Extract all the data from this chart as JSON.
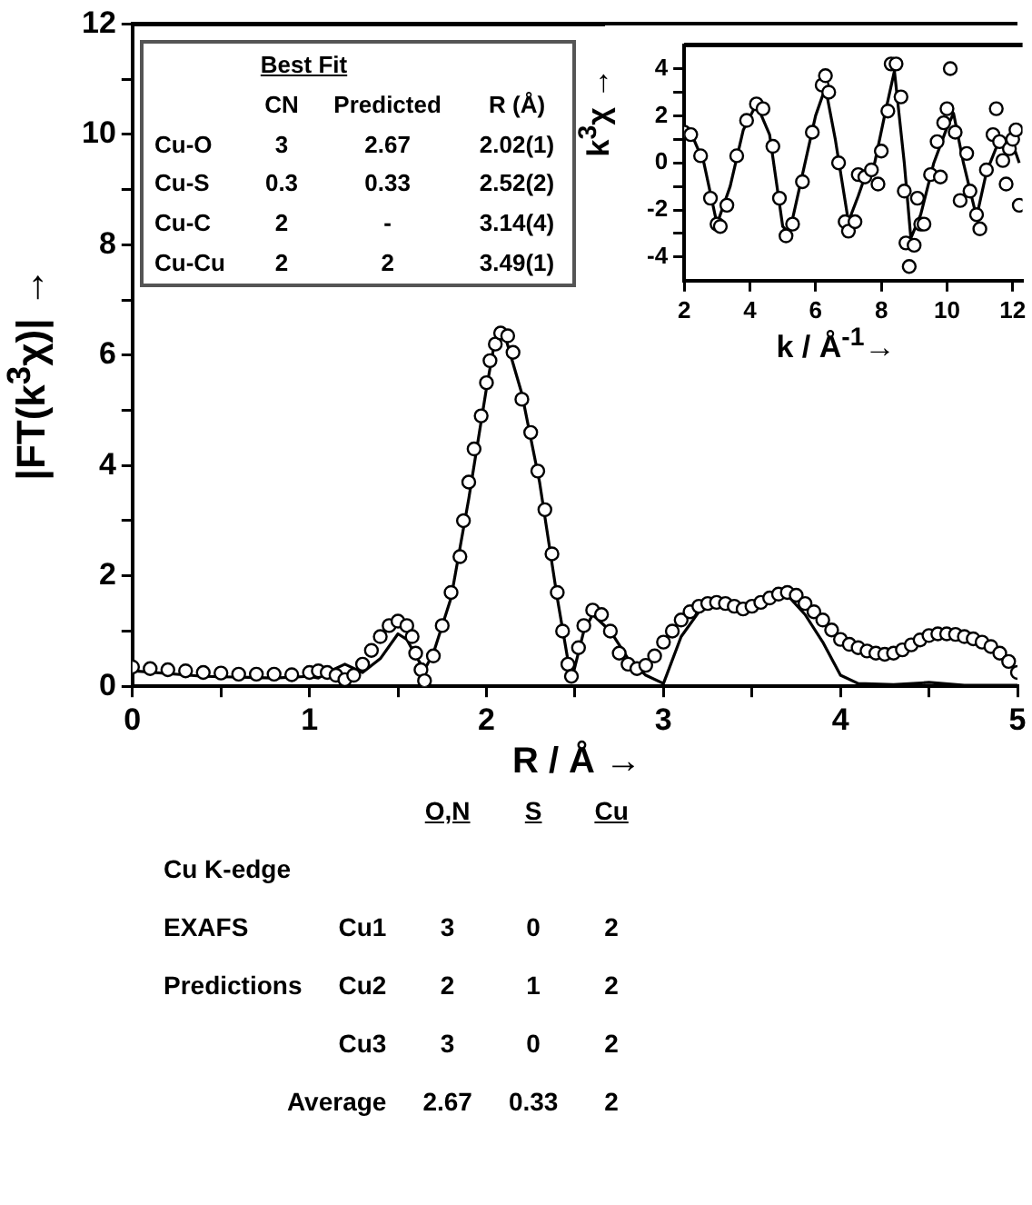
{
  "chart_data": [
    {
      "type": "line",
      "xlabel": "R / Å →",
      "ylabel": "|FT(k$^{3}$χ)| →",
      "xlim": [
        0,
        5
      ],
      "ylim": [
        0,
        12
      ],
      "xticks": [
        0,
        {
          "value": 0.5,
          "label": null
        },
        1,
        {
          "value": 1.5,
          "label": null
        },
        2,
        {
          "value": 2.5,
          "label": null
        },
        3,
        {
          "value": 3.5,
          "label": null
        },
        4,
        {
          "value": 4.5,
          "label": null
        },
        5
      ],
      "yticks": [
        0,
        {
          "value": 1,
          "label": null
        },
        2,
        {
          "value": 3,
          "label": null
        },
        4,
        {
          "value": 5,
          "label": null
        },
        6,
        {
          "value": 7,
          "label": null
        },
        8,
        {
          "value": 9,
          "label": null
        },
        10,
        {
          "value": 11,
          "label": null
        },
        12
      ],
      "series": [
        {
          "type": "scatter",
          "marker": "circle",
          "color": "#000000",
          "x": [
            0,
            0.1,
            0.2,
            0.3,
            0.4,
            0.5,
            0.6,
            0.7,
            0.8,
            0.9,
            1.0,
            1.05,
            1.1,
            1.15,
            1.2,
            1.25,
            1.3,
            1.35,
            1.4,
            1.45,
            1.5,
            1.55,
            1.58,
            1.6,
            1.63,
            1.65,
            1.7,
            1.75,
            1.8,
            1.85,
            1.87,
            1.9,
            1.93,
            1.97,
            2.0,
            2.02,
            2.05,
            2.08,
            2.12,
            2.15,
            2.2,
            2.25,
            2.29,
            2.33,
            2.37,
            2.4,
            2.43,
            2.46,
            2.48,
            2.52,
            2.55,
            2.6,
            2.65,
            2.7,
            2.75,
            2.8,
            2.85,
            2.9,
            2.95,
            3.0,
            3.05,
            3.1,
            3.15,
            3.2,
            3.25,
            3.3,
            3.35,
            3.4,
            3.45,
            3.5,
            3.55,
            3.6,
            3.65,
            3.7,
            3.75,
            3.8,
            3.85,
            3.9,
            3.95,
            4.0,
            4.05,
            4.1,
            4.15,
            4.2,
            4.25,
            4.3,
            4.35,
            4.4,
            4.45,
            4.5,
            4.55,
            4.6,
            4.65,
            4.7,
            4.75,
            4.8,
            4.85,
            4.9,
            4.95,
            5.0
          ],
          "values": [
            0.35,
            0.32,
            0.3,
            0.28,
            0.25,
            0.24,
            0.22,
            0.22,
            0.22,
            0.21,
            0.25,
            0.28,
            0.25,
            0.2,
            0.12,
            0.2,
            0.4,
            0.65,
            0.9,
            1.1,
            1.18,
            1.1,
            0.9,
            0.6,
            0.3,
            0.1,
            0.55,
            1.1,
            1.7,
            2.35,
            3.0,
            3.7,
            4.3,
            4.9,
            5.5,
            5.9,
            6.2,
            6.4,
            6.35,
            6.05,
            5.2,
            4.6,
            3.9,
            3.2,
            2.4,
            1.7,
            1.0,
            0.4,
            0.18,
            0.7,
            1.1,
            1.38,
            1.3,
            1.0,
            0.6,
            0.4,
            0.32,
            0.38,
            0.55,
            0.8,
            1.0,
            1.2,
            1.35,
            1.45,
            1.5,
            1.52,
            1.5,
            1.45,
            1.4,
            1.45,
            1.52,
            1.6,
            1.67,
            1.7,
            1.65,
            1.5,
            1.35,
            1.2,
            1.02,
            0.85,
            0.76,
            0.7,
            0.64,
            0.6,
            0.58,
            0.6,
            0.66,
            0.75,
            0.84,
            0.92,
            0.95,
            0.95,
            0.94,
            0.9,
            0.86,
            0.8,
            0.72,
            0.6,
            0.45,
            0.25
          ]
        },
        {
          "type": "line",
          "marker": "none",
          "color": "#000000",
          "x": [
            0,
            0.4,
            0.8,
            1.0,
            1.05,
            1.1,
            1.2,
            1.3,
            1.4,
            1.5,
            1.55,
            1.6,
            1.65,
            1.7,
            1.8,
            1.9,
            2.0,
            2.05,
            2.1,
            2.2,
            2.3,
            2.4,
            2.48,
            2.55,
            2.6,
            2.7,
            2.8,
            2.9,
            3.0,
            3.1,
            3.2,
            3.3,
            3.45,
            3.6,
            3.7,
            3.8,
            3.9,
            4.0,
            4.1,
            4.3,
            4.5,
            4.7,
            5.0
          ],
          "values": [
            0.28,
            0.18,
            0.15,
            0.18,
            0.15,
            0.25,
            0.4,
            0.25,
            0.5,
            0.95,
            0.85,
            0.55,
            0.3,
            0.6,
            1.6,
            3.4,
            5.4,
            6.3,
            6.4,
            5.3,
            3.7,
            1.6,
            0.1,
            1.0,
            1.3,
            1.0,
            0.5,
            0.2,
            0.05,
            0.9,
            1.35,
            1.5,
            1.38,
            1.55,
            1.65,
            1.3,
            0.8,
            0.2,
            0.05,
            0.03,
            0.07,
            0.02,
            0.02
          ]
        }
      ]
    },
    {
      "type": "line",
      "xlabel": "k / Å$^{-1}$→",
      "ylabel": "k$^{3}$χ →",
      "xlim": [
        2,
        12.3
      ],
      "ylim": [
        -5,
        5
      ],
      "xticks": [
        2,
        4,
        6,
        8,
        10,
        12
      ],
      "yticks": [
        -4,
        {
          "value": -3,
          "label": null
        },
        -2,
        {
          "value": -1,
          "label": null
        },
        0,
        {
          "value": 1,
          "label": null
        },
        2,
        {
          "value": 3,
          "label": null
        },
        4
      ],
      "series": [
        {
          "type": "scatter",
          "marker": "circle",
          "color": "#000000",
          "x": [
            2.0,
            2.2,
            2.5,
            2.8,
            3.0,
            3.1,
            3.3,
            3.6,
            3.9,
            4.2,
            4.4,
            4.7,
            4.9,
            5.1,
            5.3,
            5.6,
            5.9,
            6.2,
            6.3,
            6.4,
            6.7,
            6.9,
            7.0,
            7.2,
            7.3,
            7.5,
            7.7,
            7.9,
            8.0,
            8.2,
            8.3,
            8.45,
            8.6,
            8.7,
            8.75,
            8.85,
            9.0,
            9.1,
            9.2,
            9.3,
            9.5,
            9.7,
            9.8,
            9.9,
            10.0,
            10.1,
            10.25,
            10.4,
            10.6,
            10.7,
            10.9,
            11.0,
            11.2,
            11.4,
            11.5,
            11.6,
            11.7,
            11.8,
            11.9,
            12.0,
            12.1,
            12.2
          ],
          "values": [
            1.3,
            1.2,
            0.3,
            -1.5,
            -2.6,
            -2.7,
            -1.8,
            0.3,
            1.8,
            2.5,
            2.3,
            0.7,
            -1.5,
            -3.1,
            -2.6,
            -0.8,
            1.3,
            3.3,
            3.7,
            3.0,
            0.0,
            -2.5,
            -2.9,
            -2.5,
            -0.5,
            -0.6,
            -0.3,
            -0.9,
            0.5,
            2.2,
            4.2,
            4.2,
            2.8,
            -1.2,
            -3.4,
            -4.4,
            -3.5,
            -1.5,
            -2.6,
            -2.6,
            -0.5,
            0.9,
            -0.6,
            1.7,
            2.3,
            4.0,
            1.3,
            -1.6,
            0.4,
            -1.2,
            -2.2,
            -2.8,
            -0.3,
            1.2,
            2.3,
            0.9,
            0.1,
            -0.9,
            0.6,
            1.0,
            1.4,
            -1.8
          ]
        },
        {
          "type": "line",
          "marker": "none",
          "color": "#000000",
          "x": [
            2.0,
            2.2,
            2.6,
            3.0,
            3.4,
            3.8,
            4.2,
            4.6,
            5.0,
            5.2,
            5.6,
            6.0,
            6.3,
            6.6,
            7.0,
            7.3,
            7.5,
            7.8,
            8.1,
            8.4,
            8.7,
            8.9,
            9.2,
            9.6,
            10.0,
            10.2,
            10.5,
            10.9,
            11.2,
            11.6,
            12.0,
            12.2
          ],
          "values": [
            1.4,
            1.3,
            0.0,
            -2.6,
            -1.0,
            1.4,
            2.5,
            1.2,
            -2.7,
            -3.0,
            -0.5,
            2.0,
            3.2,
            1.0,
            -2.5,
            -1.4,
            -0.6,
            0.0,
            2.0,
            3.9,
            0.0,
            -3.2,
            -2.2,
            0.0,
            1.5,
            2.1,
            0.0,
            -2.3,
            -0.4,
            1.0,
            0.8,
            0.0
          ]
        }
      ]
    },
    {
      "type": "other",
      "title": "Best Fit",
      "categories": [
        "CN",
        "Predicted",
        "R (Å)"
      ],
      "y_categories": [
        "Cu-O",
        "Cu-S",
        "Cu-C",
        "Cu-Cu"
      ],
      "cell_labels": [
        [
          "3",
          "2.67",
          "2.02(1)"
        ],
        [
          "0.3",
          "0.33",
          "2.52(2)"
        ],
        [
          "2",
          "-",
          "3.14(4)"
        ],
        [
          "2",
          "2",
          "3.49(1)"
        ]
      ]
    },
    {
      "type": "other",
      "categories": [
        "O,N",
        "S",
        "Cu"
      ],
      "y_categories": [
        "Cu1",
        "Cu2",
        "Cu3",
        "Average"
      ],
      "cell_labels": [
        [
          "3",
          "0",
          "2"
        ],
        [
          "2",
          "1",
          "2"
        ],
        [
          "3",
          "0",
          "2"
        ],
        [
          "2.67",
          "0.33",
          "2"
        ]
      ],
      "annotations": [
        "Cu K-edge",
        "EXAFS",
        "Predictions"
      ]
    }
  ]
}
